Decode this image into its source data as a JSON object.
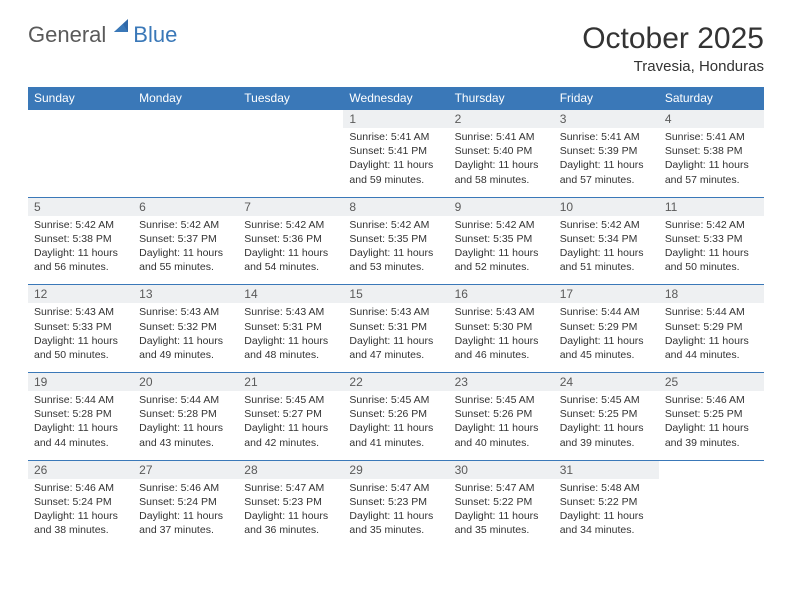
{
  "brand": {
    "part1": "General",
    "part2": "Blue"
  },
  "title": "October 2025",
  "subtitle": "Travesia, Honduras",
  "colors": {
    "header_bg": "#3a78b8",
    "header_fg": "#ffffff",
    "daynum_bg": "#eef0f2",
    "daynum_fg": "#5a5a5a",
    "rule": "#3a78b8",
    "text": "#333333",
    "brand_gray": "#5a5a5a",
    "brand_blue": "#3a78b8",
    "page_bg": "#ffffff"
  },
  "typography": {
    "title_fontsize": 30,
    "subtitle_fontsize": 15,
    "dayhead_fontsize": 12,
    "daynum_fontsize": 12,
    "cell_fontsize": 10.5
  },
  "day_headers": [
    "Sunday",
    "Monday",
    "Tuesday",
    "Wednesday",
    "Thursday",
    "Friday",
    "Saturday"
  ],
  "weeks": [
    [
      null,
      null,
      null,
      {
        "n": "1",
        "sr": "5:41 AM",
        "ss": "5:41 PM",
        "dl": "11 hours and 59 minutes."
      },
      {
        "n": "2",
        "sr": "5:41 AM",
        "ss": "5:40 PM",
        "dl": "11 hours and 58 minutes."
      },
      {
        "n": "3",
        "sr": "5:41 AM",
        "ss": "5:39 PM",
        "dl": "11 hours and 57 minutes."
      },
      {
        "n": "4",
        "sr": "5:41 AM",
        "ss": "5:38 PM",
        "dl": "11 hours and 57 minutes."
      }
    ],
    [
      {
        "n": "5",
        "sr": "5:42 AM",
        "ss": "5:38 PM",
        "dl": "11 hours and 56 minutes."
      },
      {
        "n": "6",
        "sr": "5:42 AM",
        "ss": "5:37 PM",
        "dl": "11 hours and 55 minutes."
      },
      {
        "n": "7",
        "sr": "5:42 AM",
        "ss": "5:36 PM",
        "dl": "11 hours and 54 minutes."
      },
      {
        "n": "8",
        "sr": "5:42 AM",
        "ss": "5:35 PM",
        "dl": "11 hours and 53 minutes."
      },
      {
        "n": "9",
        "sr": "5:42 AM",
        "ss": "5:35 PM",
        "dl": "11 hours and 52 minutes."
      },
      {
        "n": "10",
        "sr": "5:42 AM",
        "ss": "5:34 PM",
        "dl": "11 hours and 51 minutes."
      },
      {
        "n": "11",
        "sr": "5:42 AM",
        "ss": "5:33 PM",
        "dl": "11 hours and 50 minutes."
      }
    ],
    [
      {
        "n": "12",
        "sr": "5:43 AM",
        "ss": "5:33 PM",
        "dl": "11 hours and 50 minutes."
      },
      {
        "n": "13",
        "sr": "5:43 AM",
        "ss": "5:32 PM",
        "dl": "11 hours and 49 minutes."
      },
      {
        "n": "14",
        "sr": "5:43 AM",
        "ss": "5:31 PM",
        "dl": "11 hours and 48 minutes."
      },
      {
        "n": "15",
        "sr": "5:43 AM",
        "ss": "5:31 PM",
        "dl": "11 hours and 47 minutes."
      },
      {
        "n": "16",
        "sr": "5:43 AM",
        "ss": "5:30 PM",
        "dl": "11 hours and 46 minutes."
      },
      {
        "n": "17",
        "sr": "5:44 AM",
        "ss": "5:29 PM",
        "dl": "11 hours and 45 minutes."
      },
      {
        "n": "18",
        "sr": "5:44 AM",
        "ss": "5:29 PM",
        "dl": "11 hours and 44 minutes."
      }
    ],
    [
      {
        "n": "19",
        "sr": "5:44 AM",
        "ss": "5:28 PM",
        "dl": "11 hours and 44 minutes."
      },
      {
        "n": "20",
        "sr": "5:44 AM",
        "ss": "5:28 PM",
        "dl": "11 hours and 43 minutes."
      },
      {
        "n": "21",
        "sr": "5:45 AM",
        "ss": "5:27 PM",
        "dl": "11 hours and 42 minutes."
      },
      {
        "n": "22",
        "sr": "5:45 AM",
        "ss": "5:26 PM",
        "dl": "11 hours and 41 minutes."
      },
      {
        "n": "23",
        "sr": "5:45 AM",
        "ss": "5:26 PM",
        "dl": "11 hours and 40 minutes."
      },
      {
        "n": "24",
        "sr": "5:45 AM",
        "ss": "5:25 PM",
        "dl": "11 hours and 39 minutes."
      },
      {
        "n": "25",
        "sr": "5:46 AM",
        "ss": "5:25 PM",
        "dl": "11 hours and 39 minutes."
      }
    ],
    [
      {
        "n": "26",
        "sr": "5:46 AM",
        "ss": "5:24 PM",
        "dl": "11 hours and 38 minutes."
      },
      {
        "n": "27",
        "sr": "5:46 AM",
        "ss": "5:24 PM",
        "dl": "11 hours and 37 minutes."
      },
      {
        "n": "28",
        "sr": "5:47 AM",
        "ss": "5:23 PM",
        "dl": "11 hours and 36 minutes."
      },
      {
        "n": "29",
        "sr": "5:47 AM",
        "ss": "5:23 PM",
        "dl": "11 hours and 35 minutes."
      },
      {
        "n": "30",
        "sr": "5:47 AM",
        "ss": "5:22 PM",
        "dl": "11 hours and 35 minutes."
      },
      {
        "n": "31",
        "sr": "5:48 AM",
        "ss": "5:22 PM",
        "dl": "11 hours and 34 minutes."
      },
      null
    ]
  ],
  "labels": {
    "sunrise": "Sunrise:",
    "sunset": "Sunset:",
    "daylight": "Daylight:"
  }
}
